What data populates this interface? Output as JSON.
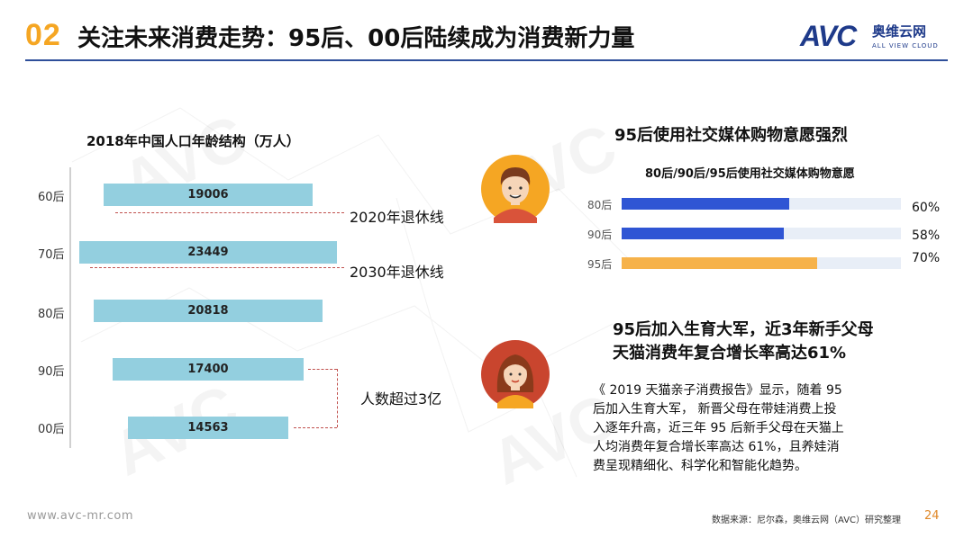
{
  "header": {
    "number": "02",
    "title": "关注未来消费走势：95后、00后陆续成为消费新力量",
    "logo_mark": "AVC",
    "logo_cn": "奥维云网",
    "logo_en": "ALL VIEW CLOUD"
  },
  "population": {
    "title": "2018年中国人口年龄结构（万人）",
    "categories": [
      "60后",
      "70后",
      "80后",
      "90后",
      "00后"
    ],
    "values": [
      "19006",
      "23449",
      "20818",
      "17400",
      "14563"
    ],
    "annotations": {
      "retire_2020": "2020年退休线",
      "retire_2030": "2030年退休线",
      "over_300m": "人数超过3亿"
    }
  },
  "social": {
    "title": "95后使用社交媒体购物意愿强烈",
    "subtitle": "80后/90后/95后使用社交媒体购物意愿",
    "categories": [
      "80后",
      "90后",
      "95后"
    ],
    "values": [
      "60%",
      "58%",
      "70%"
    ],
    "colors": [
      "#2f55d4",
      "#2f55d4",
      "#f6b24a"
    ],
    "track_color": "#e8eef7"
  },
  "birth": {
    "title_line1": "95后加入生育大军，近3年新手父母",
    "title_line2": "天猫消费年复合增长率高达61%",
    "body_lines": [
      "《 2019 天猫亲子消费报告》显示，随着 95",
      "后加入生育大军，  新晋父母在带娃消费上投",
      "入逐年升高，近三年 95 后新手父母在天猫上",
      "人均消费年复合增长率高达 61%，且养娃消",
      "费呈现精细化、科学化和智能化趋势。"
    ]
  },
  "footer": {
    "url": "www.avc-mr.com",
    "source": "数据来源：尼尔森，奥维云网（AVC）研究整理",
    "page": "24"
  },
  "chart_data": [
    {
      "type": "bar",
      "title": "2018年中国人口年龄结构（万人）",
      "categories": [
        "60后",
        "70后",
        "80后",
        "90后",
        "00后"
      ],
      "values": [
        19006,
        23449,
        20818,
        17400,
        14563
      ],
      "orientation": "horizontal",
      "color": "#93cfdf"
    },
    {
      "type": "bar",
      "title": "80后/90后/95后使用社交媒体购物意愿",
      "categories": [
        "80后",
        "90后",
        "95后"
      ],
      "values": [
        60,
        58,
        70
      ],
      "orientation": "horizontal",
      "xlim": [
        0,
        100
      ],
      "colors": [
        "#2f55d4",
        "#2f55d4",
        "#f6b24a"
      ]
    }
  ]
}
